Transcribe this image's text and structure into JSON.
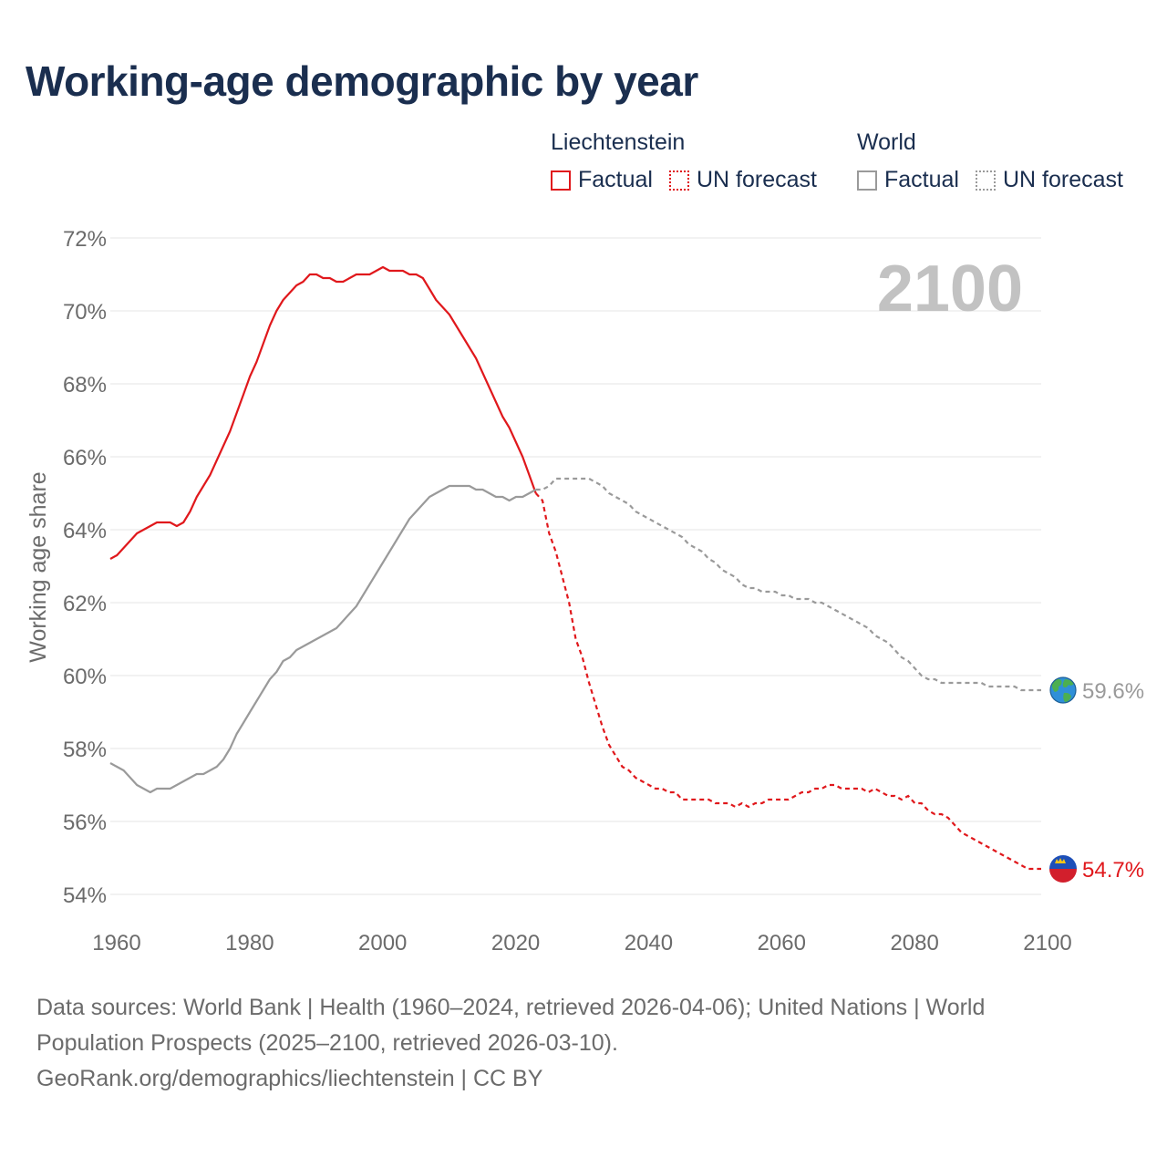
{
  "header": {
    "title": "Working-age demographic by year"
  },
  "legend": {
    "groups": [
      {
        "title": "Liechtenstein",
        "items": [
          {
            "label": "Factual"
          },
          {
            "label": "UN forecast"
          }
        ]
      },
      {
        "title": "World",
        "items": [
          {
            "label": "Factual"
          },
          {
            "label": "UN forecast"
          }
        ]
      }
    ]
  },
  "colors": {
    "liechtenstein": "#e0181c",
    "world": "#9a9a9a",
    "grid": "#e6e6e6",
    "axis_text": "#6b6b6b",
    "year_label": "#c2c2c2",
    "title": "#1a2e4f"
  },
  "chart_data": {
    "type": "line",
    "title": "Working-age demographic by year",
    "xlabel": "",
    "ylabel": "Working age share",
    "xlim": [
      1960,
      2100
    ],
    "ylim": [
      54,
      72
    ],
    "x_ticks": [
      1960,
      1980,
      2000,
      2020,
      2040,
      2060,
      2080,
      2100
    ],
    "y_ticks": [
      54,
      56,
      58,
      60,
      62,
      64,
      66,
      68,
      70,
      72
    ],
    "y_tick_labels": [
      "54%",
      "56%",
      "58%",
      "60%",
      "62%",
      "64%",
      "66%",
      "68%",
      "70%",
      "72%"
    ],
    "current_year_label": "2100",
    "factual_range": [
      1960,
      2024
    ],
    "forecast_range": [
      2025,
      2100
    ],
    "series": [
      {
        "name": "Liechtenstein",
        "end_label": "54.7%",
        "icon": "liechtenstein-flag-icon",
        "x": [
          1960,
          1961,
          1962,
          1963,
          1964,
          1965,
          1966,
          1967,
          1968,
          1969,
          1970,
          1971,
          1972,
          1973,
          1974,
          1975,
          1976,
          1977,
          1978,
          1979,
          1980,
          1981,
          1982,
          1983,
          1984,
          1985,
          1986,
          1987,
          1988,
          1989,
          1990,
          1991,
          1992,
          1993,
          1994,
          1995,
          1996,
          1997,
          1998,
          1999,
          2000,
          2001,
          2002,
          2003,
          2004,
          2005,
          2006,
          2007,
          2008,
          2009,
          2010,
          2011,
          2012,
          2013,
          2014,
          2015,
          2016,
          2017,
          2018,
          2019,
          2020,
          2021,
          2022,
          2023,
          2024,
          2025,
          2026,
          2027,
          2028,
          2029,
          2030,
          2031,
          2032,
          2033,
          2034,
          2035,
          2036,
          2037,
          2038,
          2039,
          2040,
          2041,
          2042,
          2043,
          2044,
          2045,
          2046,
          2047,
          2048,
          2049,
          2050,
          2051,
          2052,
          2053,
          2054,
          2055,
          2056,
          2057,
          2058,
          2059,
          2060,
          2061,
          2062,
          2063,
          2064,
          2065,
          2066,
          2067,
          2068,
          2069,
          2070,
          2071,
          2072,
          2073,
          2074,
          2075,
          2076,
          2077,
          2078,
          2079,
          2080,
          2081,
          2082,
          2083,
          2084,
          2085,
          2086,
          2087,
          2088,
          2089,
          2090,
          2091,
          2092,
          2093,
          2094,
          2095,
          2096,
          2097,
          2098,
          2099,
          2100
        ],
        "values": [
          63.2,
          63.3,
          63.5,
          63.7,
          63.9,
          64.0,
          64.1,
          64.2,
          64.2,
          64.2,
          64.1,
          64.2,
          64.5,
          64.9,
          65.2,
          65.5,
          65.9,
          66.3,
          66.7,
          67.2,
          67.7,
          68.2,
          68.6,
          69.1,
          69.6,
          70.0,
          70.3,
          70.5,
          70.7,
          70.8,
          71.0,
          71.0,
          70.9,
          70.9,
          70.8,
          70.8,
          70.9,
          71.0,
          71.0,
          71.0,
          71.1,
          71.2,
          71.1,
          71.1,
          71.1,
          71.0,
          71.0,
          70.9,
          70.6,
          70.3,
          70.1,
          69.9,
          69.6,
          69.3,
          69.0,
          68.7,
          68.3,
          67.9,
          67.5,
          67.1,
          66.8,
          66.4,
          66.0,
          65.5,
          65.0,
          64.8,
          63.9,
          63.4,
          62.7,
          62.0,
          61.0,
          60.5,
          59.8,
          59.2,
          58.6,
          58.1,
          57.8,
          57.5,
          57.4,
          57.2,
          57.1,
          57.0,
          56.9,
          56.9,
          56.8,
          56.8,
          56.6,
          56.6,
          56.6,
          56.6,
          56.6,
          56.5,
          56.5,
          56.5,
          56.4,
          56.5,
          56.4,
          56.5,
          56.5,
          56.6,
          56.6,
          56.6,
          56.6,
          56.7,
          56.8,
          56.8,
          56.9,
          56.9,
          57.0,
          57.0,
          56.9,
          56.9,
          56.9,
          56.9,
          56.8,
          56.9,
          56.8,
          56.7,
          56.7,
          56.6,
          56.7,
          56.5,
          56.5,
          56.3,
          56.2,
          56.2,
          56.1,
          55.9,
          55.7,
          55.6,
          55.5,
          55.4,
          55.3,
          55.2,
          55.1,
          55.0,
          54.9,
          54.8,
          54.7,
          54.7,
          54.7
        ]
      },
      {
        "name": "World",
        "end_label": "59.6%",
        "icon": "globe-icon",
        "x": [
          1960,
          1961,
          1962,
          1963,
          1964,
          1965,
          1966,
          1967,
          1968,
          1969,
          1970,
          1971,
          1972,
          1973,
          1974,
          1975,
          1976,
          1977,
          1978,
          1979,
          1980,
          1981,
          1982,
          1983,
          1984,
          1985,
          1986,
          1987,
          1988,
          1989,
          1990,
          1991,
          1992,
          1993,
          1994,
          1995,
          1996,
          1997,
          1998,
          1999,
          2000,
          2001,
          2002,
          2003,
          2004,
          2005,
          2006,
          2007,
          2008,
          2009,
          2010,
          2011,
          2012,
          2013,
          2014,
          2015,
          2016,
          2017,
          2018,
          2019,
          2020,
          2021,
          2022,
          2023,
          2024,
          2025,
          2026,
          2027,
          2028,
          2029,
          2030,
          2031,
          2032,
          2033,
          2034,
          2035,
          2036,
          2037,
          2038,
          2039,
          2040,
          2041,
          2042,
          2043,
          2044,
          2045,
          2046,
          2047,
          2048,
          2049,
          2050,
          2051,
          2052,
          2053,
          2054,
          2055,
          2056,
          2057,
          2058,
          2059,
          2060,
          2061,
          2062,
          2063,
          2064,
          2065,
          2066,
          2067,
          2068,
          2069,
          2070,
          2071,
          2072,
          2073,
          2074,
          2075,
          2076,
          2077,
          2078,
          2079,
          2080,
          2081,
          2082,
          2083,
          2084,
          2085,
          2086,
          2087,
          2088,
          2089,
          2090,
          2091,
          2092,
          2093,
          2094,
          2095,
          2096,
          2097,
          2098,
          2099,
          2100
        ],
        "values": [
          57.6,
          57.5,
          57.4,
          57.2,
          57.0,
          56.9,
          56.8,
          56.9,
          56.9,
          56.9,
          57.0,
          57.1,
          57.2,
          57.3,
          57.3,
          57.4,
          57.5,
          57.7,
          58.0,
          58.4,
          58.7,
          59.0,
          59.3,
          59.6,
          59.9,
          60.1,
          60.4,
          60.5,
          60.7,
          60.8,
          60.9,
          61.0,
          61.1,
          61.2,
          61.3,
          61.5,
          61.7,
          61.9,
          62.2,
          62.5,
          62.8,
          63.1,
          63.4,
          63.7,
          64.0,
          64.3,
          64.5,
          64.7,
          64.9,
          65.0,
          65.1,
          65.2,
          65.2,
          65.2,
          65.2,
          65.1,
          65.1,
          65.0,
          64.9,
          64.9,
          64.8,
          64.9,
          64.9,
          65.0,
          65.1,
          65.1,
          65.2,
          65.4,
          65.4,
          65.4,
          65.4,
          65.4,
          65.4,
          65.3,
          65.2,
          65.0,
          64.9,
          64.8,
          64.7,
          64.5,
          64.4,
          64.3,
          64.2,
          64.1,
          64.0,
          63.9,
          63.8,
          63.6,
          63.5,
          63.4,
          63.2,
          63.1,
          62.9,
          62.8,
          62.7,
          62.5,
          62.4,
          62.4,
          62.3,
          62.3,
          62.3,
          62.2,
          62.2,
          62.1,
          62.1,
          62.1,
          62.0,
          62.0,
          61.9,
          61.8,
          61.7,
          61.6,
          61.5,
          61.4,
          61.3,
          61.1,
          61.0,
          60.9,
          60.7,
          60.5,
          60.4,
          60.2,
          60.0,
          59.9,
          59.9,
          59.8,
          59.8,
          59.8,
          59.8,
          59.8,
          59.8,
          59.8,
          59.7,
          59.7,
          59.7,
          59.7,
          59.7,
          59.6,
          59.6,
          59.6,
          59.6
        ]
      }
    ]
  },
  "footer": {
    "line1": "Data sources: World Bank | Health (1960–2024, retrieved 2026-04-06); United Nations | World Population Prospects (2025–2100, retrieved 2026-03-10).",
    "line2": "GeoRank.org/demographics/liechtenstein | CC BY"
  }
}
